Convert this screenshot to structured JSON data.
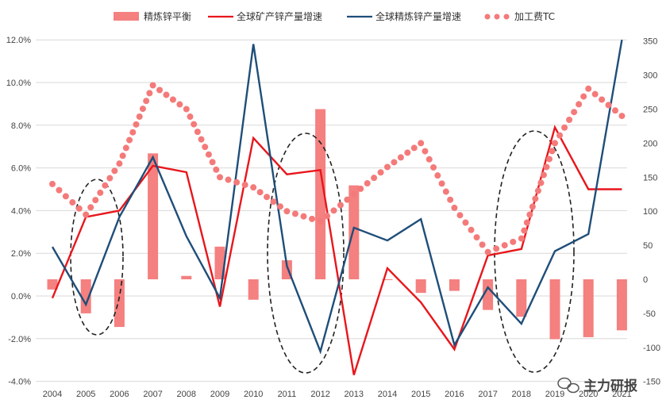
{
  "chart_data": {
    "type": "combo",
    "categories": [
      "2004",
      "2005",
      "2006",
      "2007",
      "2008",
      "2009",
      "2010",
      "2011",
      "2012",
      "2013",
      "2014",
      "2015",
      "2016",
      "2017",
      "2018",
      "2019",
      "2020",
      "2021"
    ],
    "legend": [
      {
        "name": "精炼锌平衡",
        "style": "bar",
        "color": "#f48080"
      },
      {
        "name": "全球矿产锌产量增速",
        "style": "line",
        "color": "#e8161c"
      },
      {
        "name": "全球精炼锌产量增速",
        "style": "line",
        "color": "#1f4e79"
      },
      {
        "name": "加工费TC",
        "style": "dots",
        "color": "#f47a7a"
      }
    ],
    "series": [
      {
        "name": "精炼锌平衡",
        "axis": "right",
        "values": [
          -15,
          -50,
          -70,
          185,
          5,
          48,
          -30,
          28,
          250,
          138,
          0,
          -20,
          -17,
          -45,
          -55,
          -88,
          -85,
          -75
        ]
      },
      {
        "name": "全球矿产锌产量增速",
        "axis": "left",
        "values": [
          -0.1,
          3.7,
          4.0,
          6.1,
          5.8,
          -0.5,
          7.4,
          5.7,
          5.9,
          -3.7,
          1.3,
          -0.3,
          -2.5,
          1.9,
          2.2,
          7.9,
          5.0,
          5.0
        ]
      },
      {
        "name": "全球精炼锌产量增速",
        "axis": "left",
        "values": [
          2.3,
          -0.4,
          3.7,
          6.5,
          2.8,
          -0.1,
          11.8,
          1.4,
          -2.6,
          3.2,
          2.6,
          3.6,
          -2.3,
          0.4,
          -1.3,
          2.1,
          2.9,
          12.0
        ]
      },
      {
        "name": "加工费TC",
        "axis": "right",
        "values": [
          140,
          95,
          170,
          285,
          250,
          150,
          135,
          100,
          85,
          125,
          165,
          200,
          105,
          40,
          60,
          200,
          280,
          240
        ]
      }
    ],
    "left_axis": {
      "min": -4.0,
      "max": 12.0,
      "step": 2.0,
      "ticks": [
        "-4.0%",
        "-2.0%",
        "0.0%",
        "2.0%",
        "4.0%",
        "6.0%",
        "8.0%",
        "10.0%",
        "12.0%"
      ]
    },
    "right_axis": {
      "min": -150,
      "max": 350,
      "step": 50,
      "ticks": [
        "-150",
        "-100",
        "-50",
        "0",
        "50",
        "100",
        "150",
        "200",
        "250",
        "300",
        "350"
      ]
    },
    "grid": "horizontal",
    "legend_position": "top",
    "annotations": [
      "dashed ellipse 2005-2006",
      "dashed ellipse 2011-2012",
      "dashed ellipse 2018-2019"
    ],
    "watermark": "主力研报"
  },
  "colors": {
    "bar": "#f48080",
    "mine": "#e8161c",
    "refined": "#1f4e79",
    "tc": "#f47a7a",
    "grid": "#d9d9d9"
  }
}
